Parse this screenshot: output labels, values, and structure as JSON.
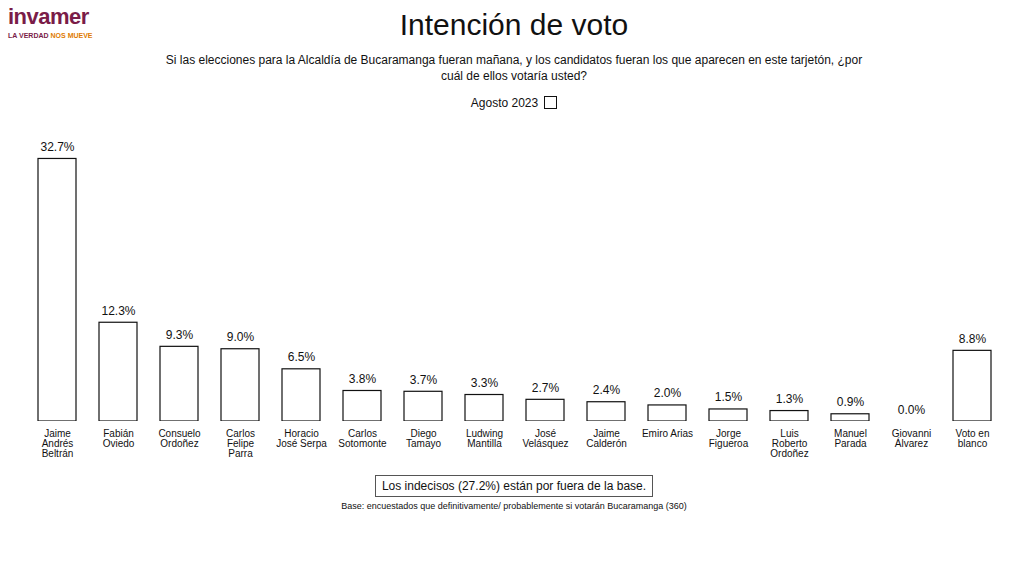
{
  "chart_data": {
    "type": "bar",
    "title": "Intención de voto",
    "subtitle": "Si las elecciones para la Alcaldía de Bucaramanga fueran mañana, y los candidatos fueran los que aparecen en este tarjetón, ¿por cuál de ellos votaría usted?",
    "logo": {
      "name": "invamer",
      "tagline_start": "LA VERDAD ",
      "tagline_end": "NOS MUEVE"
    },
    "categories": [
      "Jaime Andrés Beltrán",
      "Fabián Oviedo",
      "Consuelo Ordoñez",
      "Carlos Felipe Parra",
      "Horacio José Serpa",
      "Carlos Sotomonte",
      "Diego Tamayo",
      "Ludwing Mantilla",
      "José Velásquez",
      "Jaime Calderón",
      "Emiro Arias",
      "Jorge Figueroa",
      "Luis Roberto Ordoñez",
      "Manuel Parada",
      "Giovanni Álvarez",
      "Voto en blanco"
    ],
    "series": [
      {
        "name": "Agosto 2023",
        "color": "#ffffff",
        "values": [
          32.7,
          12.3,
          9.3,
          9.0,
          6.5,
          3.8,
          3.7,
          3.3,
          2.7,
          2.4,
          2.0,
          1.5,
          1.3,
          0.9,
          0.0,
          8.8
        ],
        "value_labels": [
          "32.7%",
          "12.3%",
          "9.3%",
          "9.0%",
          "6.5%",
          "3.8%",
          "3.7%",
          "3.3%",
          "2.7%",
          "2.4%",
          "2.0%",
          "1.5%",
          "1.3%",
          "0.9%",
          "0.0%",
          "8.8%"
        ]
      }
    ],
    "ylim": [
      0,
      35
    ],
    "yticks": [],
    "tick_labels": "x",
    "data_labels": true,
    "legend": "top",
    "grid": false,
    "annotations": [
      "Los indecisos (27.2%) están por fuera de la base.",
      "Base: encuestados que definitivamente/ probablemente si votarán Bucaramanga (360)"
    ]
  }
}
